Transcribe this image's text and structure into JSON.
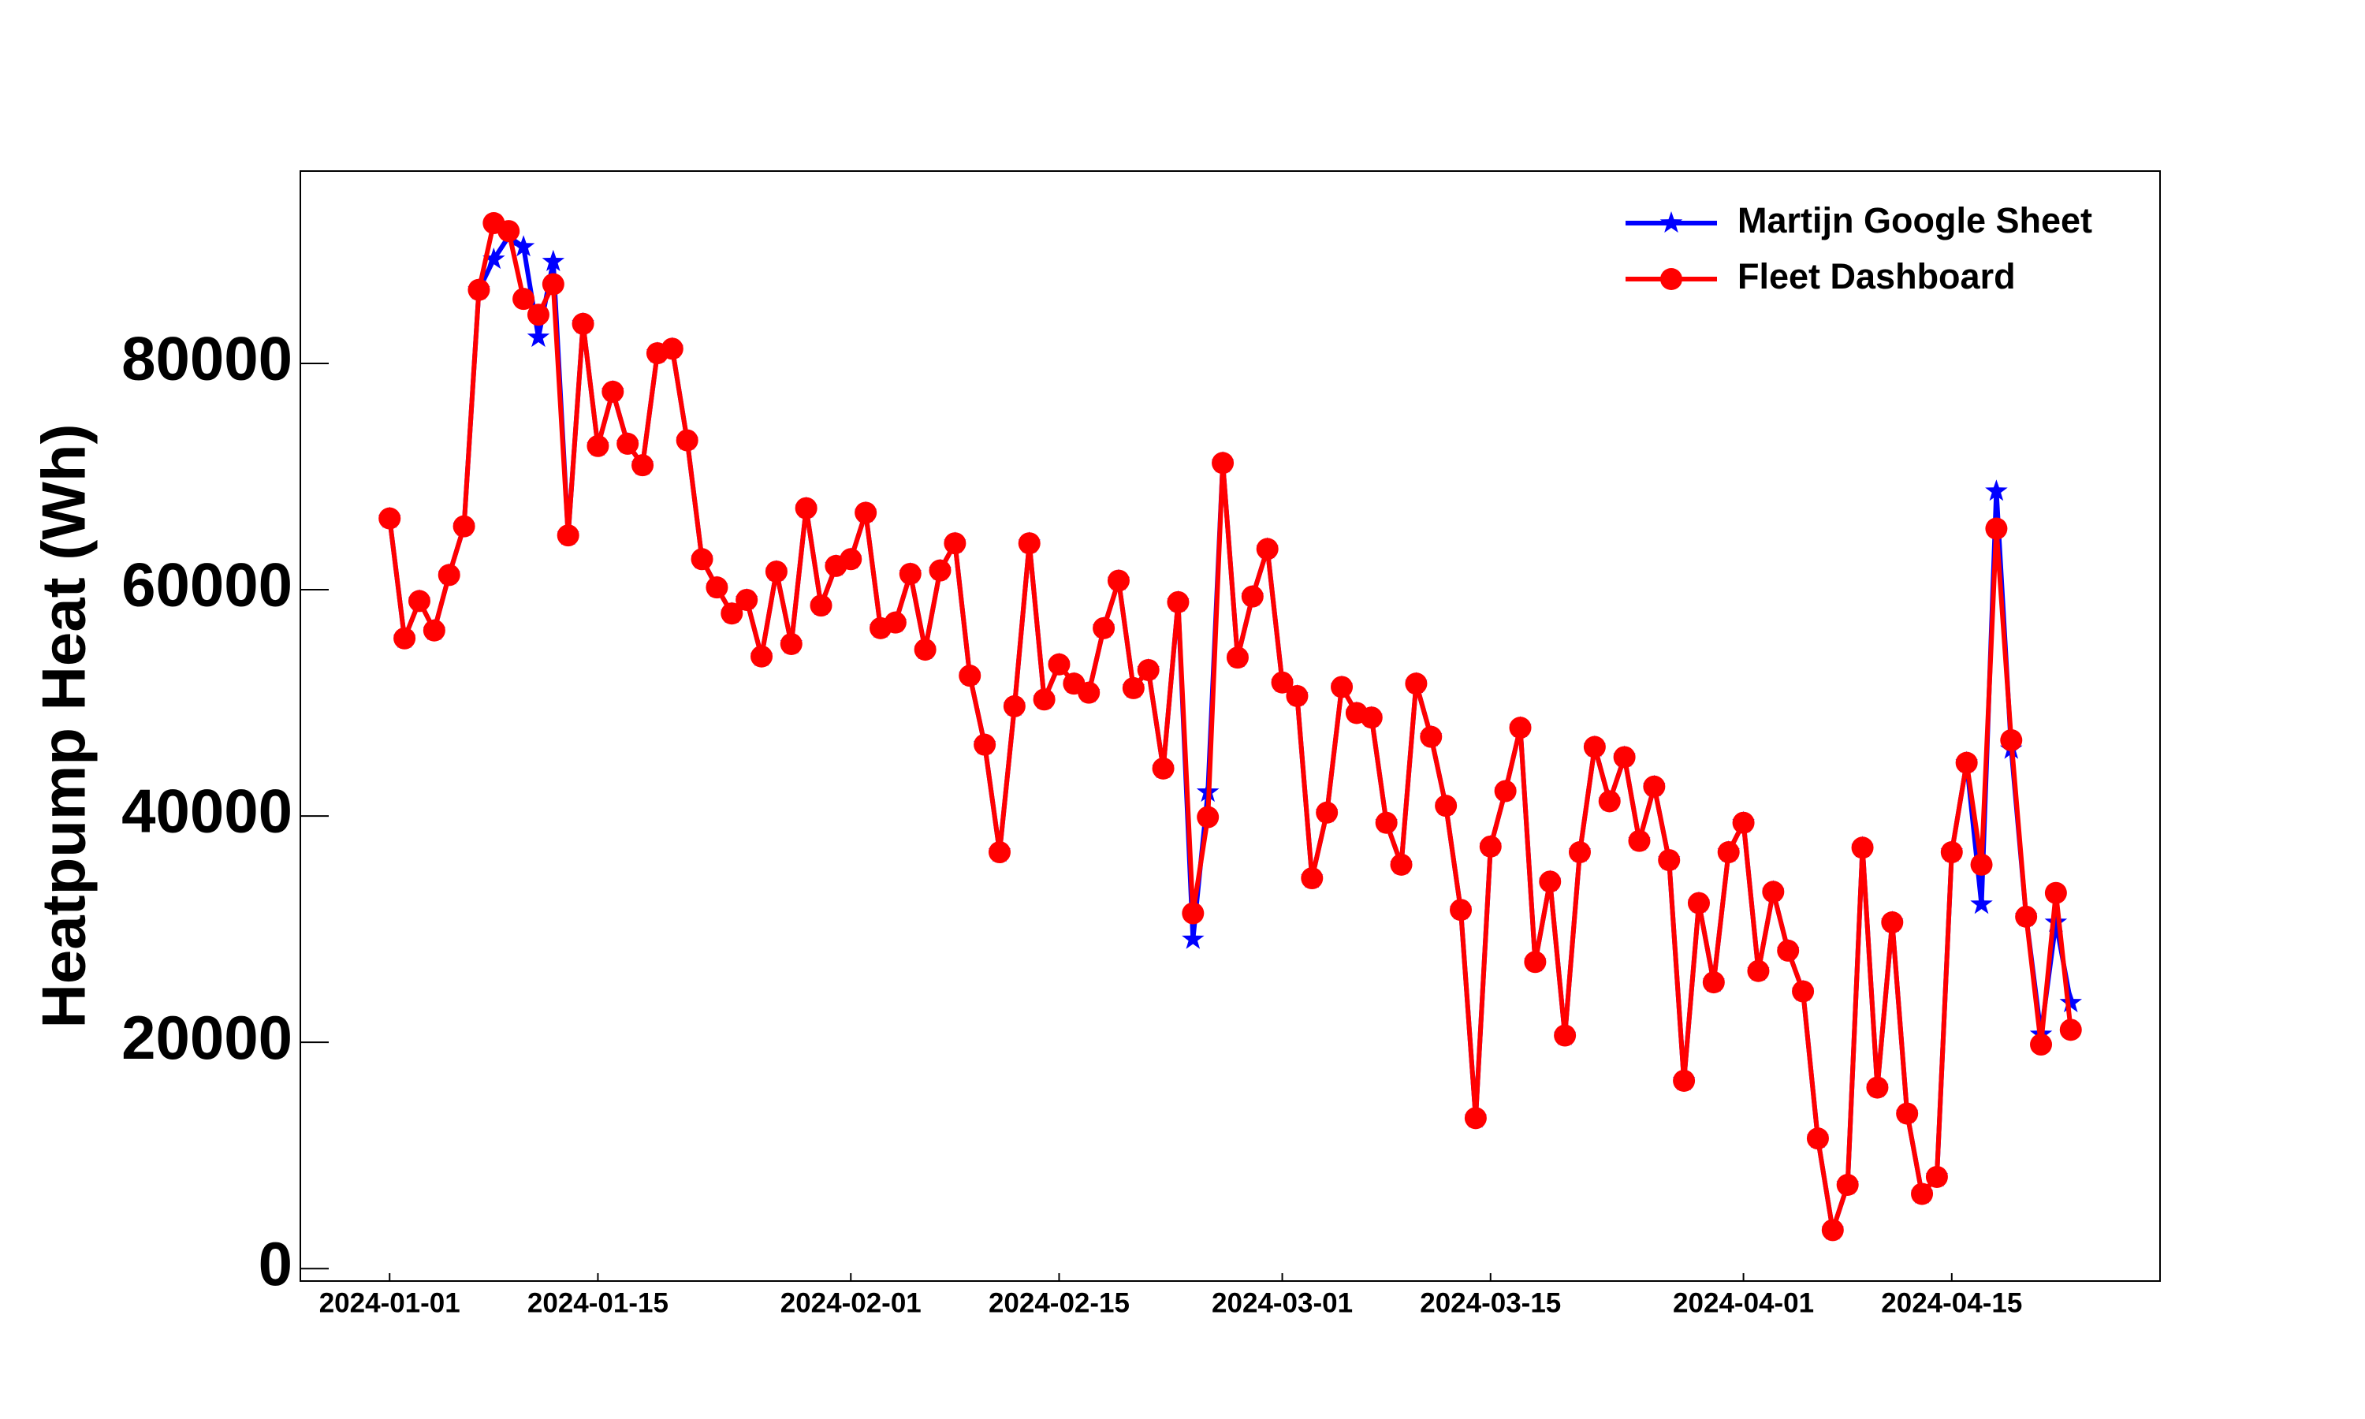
{
  "chart_data": {
    "type": "line",
    "ylabel": "Heatpump Heat (Wh)",
    "x": [
      "2024-01-01",
      "2024-01-02",
      "2024-01-03",
      "2024-01-04",
      "2024-01-05",
      "2024-01-06",
      "2024-01-07",
      "2024-01-08",
      "2024-01-09",
      "2024-01-10",
      "2024-01-11",
      "2024-01-12",
      "2024-01-13",
      "2024-01-14",
      "2024-01-15",
      "2024-01-16",
      "2024-01-17",
      "2024-01-18",
      "2024-01-19",
      "2024-01-20",
      "2024-01-21",
      "2024-01-22",
      "2024-01-23",
      "2024-01-24",
      "2024-01-25",
      "2024-01-26",
      "2024-01-27",
      "2024-01-28",
      "2024-01-29",
      "2024-01-30",
      "2024-01-31",
      "2024-02-01",
      "2024-02-02",
      "2024-02-03",
      "2024-02-04",
      "2024-02-05",
      "2024-02-06",
      "2024-02-07",
      "2024-02-08",
      "2024-02-09",
      "2024-02-10",
      "2024-02-11",
      "2024-02-12",
      "2024-02-13",
      "2024-02-14",
      "2024-02-15",
      "2024-02-16",
      "2024-02-17",
      "2024-02-18",
      "2024-02-19",
      "2024-02-20",
      "2024-02-21",
      "2024-02-22",
      "2024-02-23",
      "2024-02-24",
      "2024-02-25",
      "2024-02-26",
      "2024-02-27",
      "2024-02-28",
      "2024-02-29",
      "2024-03-01",
      "2024-03-02",
      "2024-03-03",
      "2024-03-04",
      "2024-03-05",
      "2024-03-06",
      "2024-03-07",
      "2024-03-08",
      "2024-03-09",
      "2024-03-10",
      "2024-03-11",
      "2024-03-12",
      "2024-03-13",
      "2024-03-14",
      "2024-03-15",
      "2024-03-16",
      "2024-03-17",
      "2024-03-18",
      "2024-03-19",
      "2024-03-20",
      "2024-03-21",
      "2024-03-22",
      "2024-03-23",
      "2024-03-24",
      "2024-03-25",
      "2024-03-26",
      "2024-03-27",
      "2024-03-28",
      "2024-03-29",
      "2024-03-30",
      "2024-03-31",
      "2024-04-01",
      "2024-04-02",
      "2024-04-03",
      "2024-04-04",
      "2024-04-05",
      "2024-04-06",
      "2024-04-07",
      "2024-04-08",
      "2024-04-09",
      "2024-04-10",
      "2024-04-11",
      "2024-04-12",
      "2024-04-13",
      "2024-04-14",
      "2024-04-15",
      "2024-04-16",
      "2024-04-17",
      "2024-04-18",
      "2024-04-19",
      "2024-04-20",
      "2024-04-21",
      "2024-04-22",
      "2024-04-23"
    ],
    "series": [
      {
        "name": "Martijn Google Sheet",
        "color": "#0000ff",
        "marker": "star",
        "values": [
          66300,
          55700,
          59000,
          56400,
          61300,
          65600,
          86500,
          89200,
          91200,
          90300,
          82300,
          89000,
          64800,
          83500,
          72700,
          77500,
          72900,
          71000,
          80900,
          81300,
          73200,
          62700,
          60200,
          57900,
          59100,
          54100,
          61600,
          55200,
          67200,
          58600,
          62100,
          62700,
          66800,
          56600,
          57100,
          61400,
          54700,
          61700,
          64100,
          52400,
          46300,
          36800,
          49700,
          64100,
          50300,
          53400,
          51700,
          50900,
          56600,
          60800,
          51300,
          52900,
          44200,
          58900,
          29100,
          42100,
          71200,
          54000,
          59400,
          63600,
          51800,
          50600,
          34500,
          40300,
          51400,
          49100,
          48700,
          39400,
          35700,
          51700,
          47000,
          40900,
          31700,
          13300,
          37300,
          42200,
          47800,
          27100,
          34200,
          20600,
          36800,
          46100,
          41300,
          45200,
          37800,
          42600,
          36100,
          16600,
          32300,
          25300,
          36800,
          39400,
          26300,
          33300,
          28100,
          24500,
          11500,
          3400,
          7400,
          37200,
          16000,
          30600,
          13700,
          6600,
          8100,
          36800,
          44700,
          32200,
          68700,
          45900,
          31100,
          20700,
          30600,
          23500
        ]
      },
      {
        "name": "Fleet Dashboard",
        "color": "#ff0000",
        "marker": "circle",
        "values": [
          66300,
          55700,
          59000,
          56400,
          61300,
          65600,
          86500,
          92400,
          91700,
          85700,
          84300,
          87000,
          64800,
          83500,
          72700,
          77500,
          72900,
          71000,
          80900,
          81300,
          73200,
          62700,
          60200,
          57900,
          59100,
          54100,
          61600,
          55200,
          67200,
          58600,
          62100,
          62700,
          66800,
          56600,
          57100,
          61400,
          54700,
          61700,
          64100,
          52400,
          46300,
          36800,
          49700,
          64100,
          50300,
          53400,
          51700,
          50900,
          56600,
          60800,
          51300,
          52900,
          44200,
          58900,
          31400,
          39900,
          71200,
          54000,
          59400,
          63600,
          51800,
          50600,
          34500,
          40300,
          51400,
          49100,
          48700,
          39400,
          35700,
          51700,
          47000,
          40900,
          31700,
          13300,
          37300,
          42200,
          47800,
          27100,
          34200,
          20600,
          36800,
          46100,
          41300,
          45200,
          37800,
          42600,
          36100,
          16600,
          32300,
          25300,
          36800,
          39400,
          26300,
          33300,
          28100,
          24500,
          11500,
          3400,
          7400,
          37200,
          16000,
          30600,
          13700,
          6600,
          8100,
          36800,
          44700,
          35700,
          65400,
          46700,
          31100,
          19800,
          33200,
          21100
        ]
      }
    ],
    "xlim": [
      "2023-12-26",
      "2024-04-29"
    ],
    "xticks": [
      "2024-01-01",
      "2024-01-15",
      "2024-02-01",
      "2024-02-15",
      "2024-03-01",
      "2024-03-15",
      "2024-04-01",
      "2024-04-15"
    ],
    "ylim": [
      -1100,
      97000
    ],
    "yticks": [
      0,
      20000,
      40000,
      60000,
      80000
    ],
    "grid": false,
    "legend": "upper right"
  }
}
